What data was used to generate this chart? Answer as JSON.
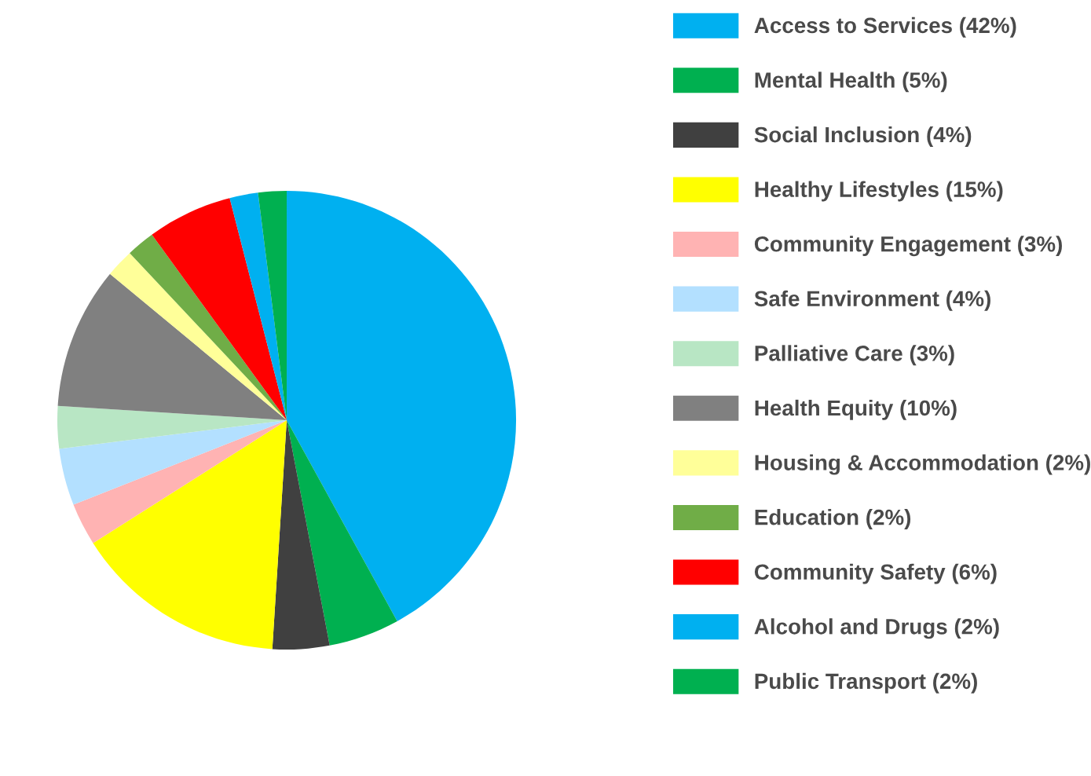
{
  "chart_data": {
    "type": "pie",
    "categories": [
      "Access to Services (42%)",
      "Mental Health (5%)",
      "Social Inclusion (4%)",
      "Healthy Lifestyles (15%)",
      "Community Engagement (3%)",
      "Safe Environment (4%)",
      "Palliative Care (3%)",
      "Health Equity (10%)",
      "Housing & Accommodation (2%)",
      "Education (2%)",
      "Community Safety (6%)",
      "Alcohol and Drugs (2%)",
      "Public Transport (2%)"
    ],
    "values": [
      42,
      5,
      4,
      15,
      3,
      4,
      3,
      10,
      2,
      2,
      6,
      2,
      2
    ],
    "colors": [
      "#00b0f0",
      "#00b050",
      "#404040",
      "#ffff00",
      "#ffb3b3",
      "#b3e0ff",
      "#b8e6c4",
      "#808080",
      "#ffff99",
      "#70ad47",
      "#ff0000",
      "#00b0f0",
      "#00b050"
    ],
    "legend": "right"
  }
}
